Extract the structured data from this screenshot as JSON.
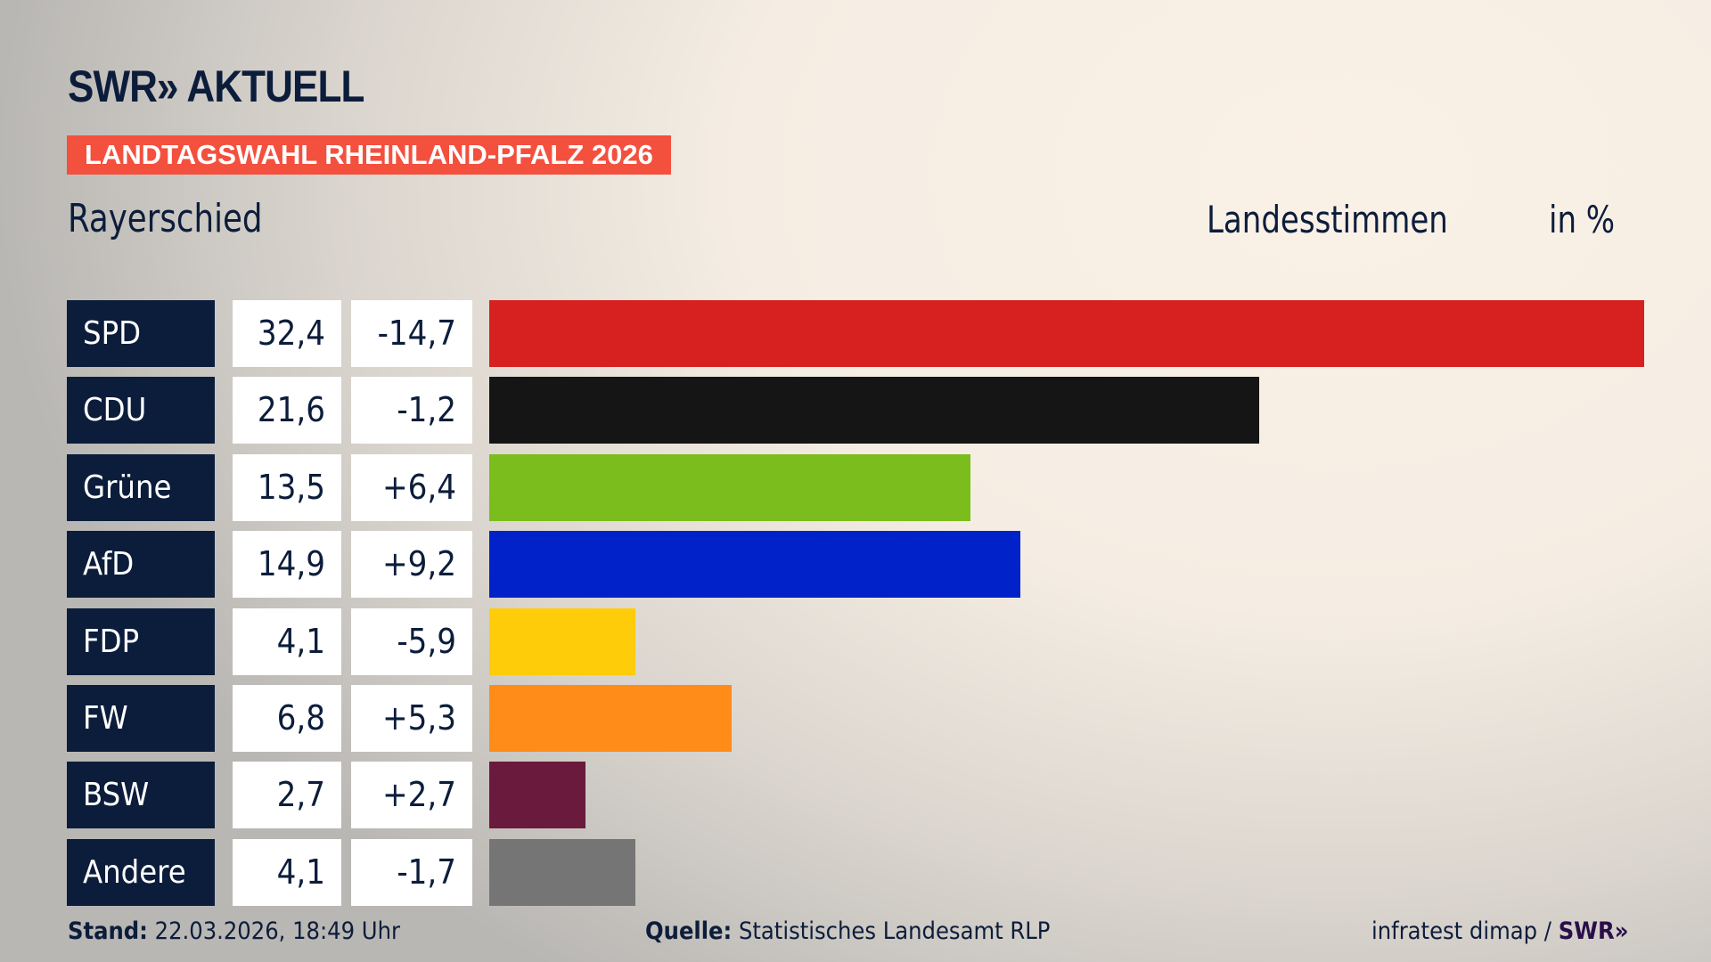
{
  "brand": {
    "logo": "SWR» AKTUELL"
  },
  "banner": "LANDTAGSWAHL RHEINLAND-PFALZ 2026",
  "region": "Rayerschied",
  "metric": "Landesstimmen",
  "unit": "in %",
  "chart_data": {
    "type": "bar",
    "orientation": "horizontal",
    "categories": [
      "SPD",
      "CDU",
      "Grüne",
      "AfD",
      "FDP",
      "FW",
      "BSW",
      "Andere"
    ],
    "values": [
      32.4,
      21.6,
      13.5,
      14.9,
      4.1,
      6.8,
      2.7,
      4.1
    ],
    "value_labels": [
      "32,4",
      "21,6",
      "13,5",
      "14,9",
      "4,1",
      "6,8",
      "2,7",
      "4,1"
    ],
    "diff_labels": [
      "-14,7",
      "-1,2",
      "+6,4",
      "+9,2",
      "-5,9",
      "+5,3",
      "+2,7",
      "-1,7"
    ],
    "colors": [
      "#d72020",
      "#151515",
      "#7abd1c",
      "#0022c8",
      "#ffcc0a",
      "#ff8c19",
      "#6a1a3c",
      "#757575"
    ],
    "xlim": [
      0,
      32.4
    ]
  },
  "footer": {
    "stand_label": "Stand:",
    "stand_value": "22.03.2026, 18:49 Uhr",
    "source_label": "Quelle:",
    "source_value": "Statistisches Landesamt RLP",
    "credit": "infratest dimap /",
    "credit_logo": "SWR»"
  }
}
